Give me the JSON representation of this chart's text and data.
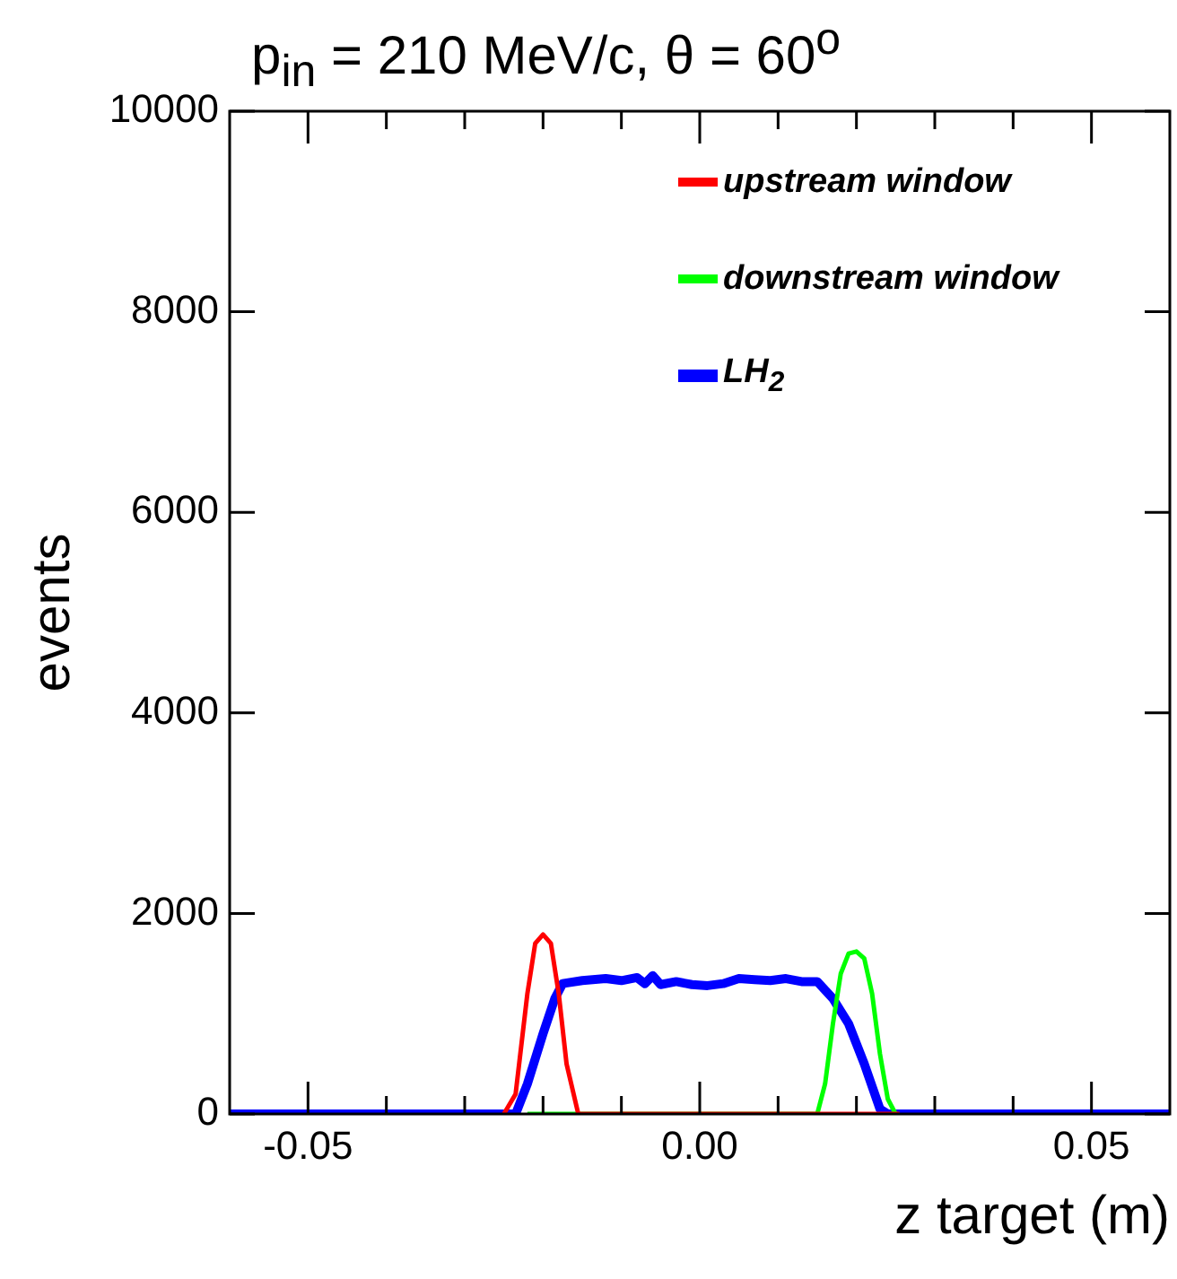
{
  "chart_data": {
    "type": "line",
    "title": "p$_{in}$ = 210 MeV/c, θ = 60$^{o}$",
    "xlabel": "z target (m)",
    "ylabel": "events",
    "xlim": [
      -0.06,
      0.06
    ],
    "ylim": [
      0,
      10000
    ],
    "xticks": [
      {
        "value": -0.05,
        "label": "-0.05"
      },
      {
        "value": -0.04,
        "label": null
      },
      {
        "value": -0.03,
        "label": null
      },
      {
        "value": -0.02,
        "label": null
      },
      {
        "value": -0.01,
        "label": null
      },
      {
        "value": 0,
        "label": "0.00"
      },
      {
        "value": 0.01,
        "label": null
      },
      {
        "value": 0.02,
        "label": null
      },
      {
        "value": 0.03,
        "label": null
      },
      {
        "value": 0.04,
        "label": null
      },
      {
        "value": 0.05,
        "label": "0.05"
      }
    ],
    "yticks": [
      0,
      2000,
      4000,
      6000,
      8000,
      10000
    ],
    "legend": "top right",
    "series": [
      {
        "name": "upstream window",
        "color": "#ff0000",
        "x": [
          -0.025,
          -0.0235,
          -0.022,
          -0.021,
          -0.02,
          -0.019,
          -0.018,
          -0.017,
          -0.0155,
          0.0255
        ],
        "values": [
          0,
          200,
          1200,
          1700,
          1790,
          1700,
          1200,
          500,
          0,
          0
        ]
      },
      {
        "name": "downstream window",
        "color": "#00ff00",
        "x": [
          -0.022,
          0.015,
          0.016,
          0.017,
          0.018,
          0.019,
          0.02,
          0.021,
          0.022,
          0.023,
          0.024,
          0.025
        ],
        "values": [
          0,
          0,
          300,
          900,
          1400,
          1600,
          1620,
          1550,
          1200,
          600,
          150,
          0
        ]
      },
      {
        "name": "LH$_{2}$",
        "color": "#0000ff",
        "x": [
          -0.06,
          -0.0235,
          -0.022,
          -0.02,
          -0.0185,
          -0.0175,
          -0.015,
          -0.012,
          -0.01,
          -0.008,
          -0.007,
          -0.006,
          -0.005,
          -0.003,
          -0.001,
          0.001,
          0.003,
          0.005,
          0.007,
          0.009,
          0.011,
          0.013,
          0.015,
          0.017,
          0.019,
          0.021,
          0.023,
          0.024,
          0.06
        ],
        "values": [
          0,
          0,
          300,
          800,
          1150,
          1300,
          1330,
          1350,
          1330,
          1360,
          1300,
          1380,
          1290,
          1320,
          1290,
          1280,
          1300,
          1350,
          1340,
          1330,
          1350,
          1320,
          1320,
          1150,
          900,
          500,
          50,
          0,
          0
        ]
      }
    ]
  }
}
